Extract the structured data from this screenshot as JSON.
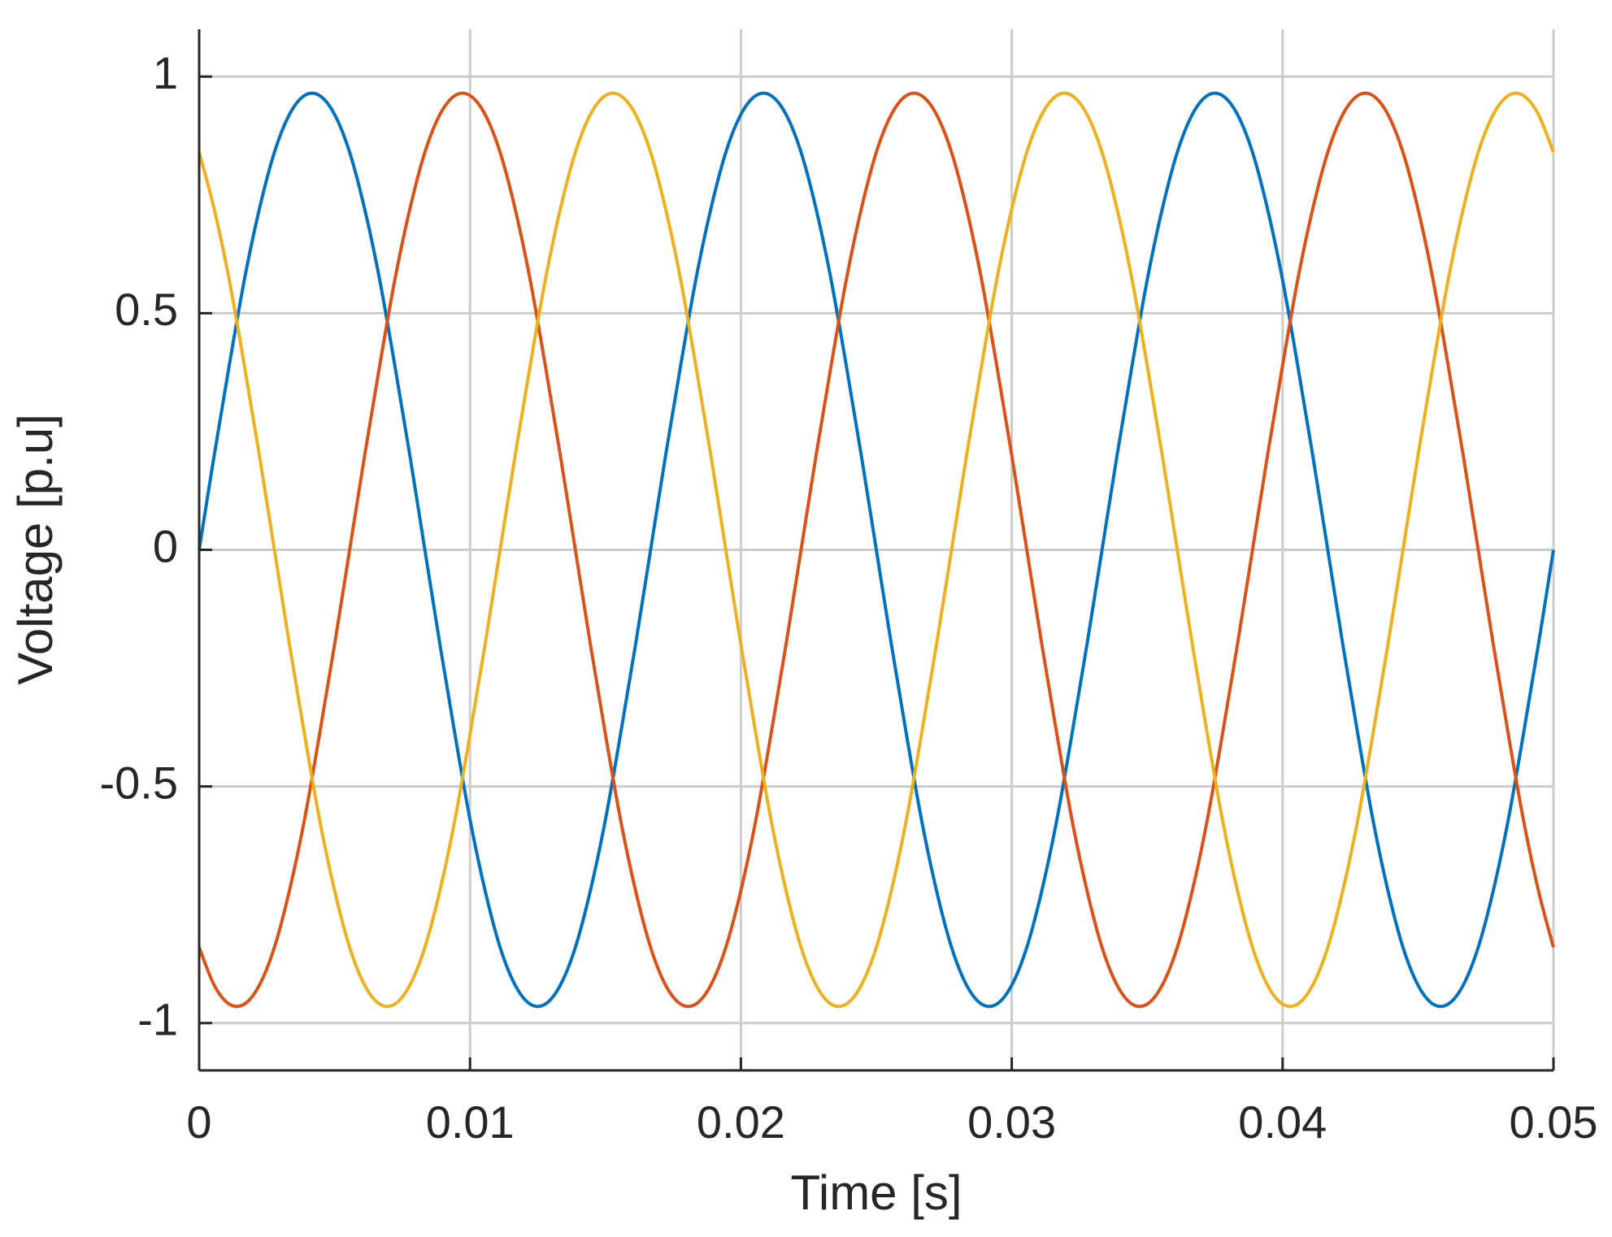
{
  "chart_data": {
    "type": "line",
    "xlabel": "Time [s]",
    "ylabel": "Voltage [p.u]",
    "xlim": [
      0,
      0.05
    ],
    "ylim": [
      -1.1,
      1.1
    ],
    "xticks": [
      0,
      0.01,
      0.02,
      0.03,
      0.04,
      0.05
    ],
    "yticks": [
      -1,
      -0.5,
      0,
      0.5,
      1
    ],
    "grid": true,
    "x": [
      0,
      0.000556,
      0.001111,
      0.001667,
      0.002222,
      0.002778,
      0.003333,
      0.003889,
      0.004444,
      0.005,
      0.005556,
      0.006111,
      0.006667,
      0.007222,
      0.007778,
      0.008333,
      0.008889,
      0.009444,
      0.01,
      0.010556,
      0.011111,
      0.011667,
      0.012222,
      0.012778,
      0.013333,
      0.013889,
      0.014444,
      0.015,
      0.015556,
      0.016111,
      0.016667,
      0.017222,
      0.017778,
      0.018333,
      0.018889,
      0.019444,
      0.02,
      0.020556,
      0.021111,
      0.021667,
      0.022222,
      0.022778,
      0.023333,
      0.023889,
      0.024444,
      0.025,
      0.025556,
      0.026111,
      0.026667,
      0.027222,
      0.027778,
      0.028333,
      0.028889,
      0.029444,
      0.03,
      0.030556,
      0.031111,
      0.031667,
      0.032222,
      0.032778,
      0.033333,
      0.033889,
      0.034444,
      0.035,
      0.035556,
      0.036111,
      0.036667,
      0.037222,
      0.037778,
      0.038333,
      0.038889,
      0.039444,
      0.04,
      0.040556,
      0.041111,
      0.041667,
      0.042222,
      0.042778,
      0.043333,
      0.043889,
      0.044444,
      0.045,
      0.045556,
      0.046111,
      0.046667,
      0.047222,
      0.047778,
      0.048333,
      0.048889,
      0.049444,
      0.05
    ],
    "series": [
      {
        "color": "#0072BD",
        "values": [
          0,
          0.2,
          0.39,
          0.57,
          0.72,
          0.84,
          0.92,
          0.96,
          0.96,
          0.92,
          0.84,
          0.72,
          0.57,
          0.39,
          0.2,
          0,
          -0.2,
          -0.39,
          -0.57,
          -0.72,
          -0.84,
          -0.92,
          -0.96,
          -0.96,
          -0.92,
          -0.84,
          -0.72,
          -0.57,
          -0.39,
          -0.2,
          0,
          0.2,
          0.39,
          0.57,
          0.72,
          0.84,
          0.92,
          0.96,
          0.96,
          0.92,
          0.84,
          0.72,
          0.57,
          0.39,
          0.2,
          0,
          -0.2,
          -0.39,
          -0.57,
          -0.72,
          -0.84,
          -0.92,
          -0.96,
          -0.96,
          -0.92,
          -0.84,
          -0.72,
          -0.57,
          -0.39,
          -0.2,
          0,
          0.2,
          0.39,
          0.57,
          0.72,
          0.84,
          0.92,
          0.96,
          0.96,
          0.92,
          0.84,
          0.72,
          0.57,
          0.39,
          0.2,
          0,
          -0.2,
          -0.39,
          -0.57,
          -0.72,
          -0.84,
          -0.92,
          -0.96,
          -0.96,
          -0.92,
          -0.84,
          -0.72,
          -0.57,
          -0.39,
          -0.2,
          0
        ]
      },
      {
        "color": "#D95319",
        "values": [
          -0.84,
          -0.92,
          -0.96,
          -0.96,
          -0.92,
          -0.84,
          -0.72,
          -0.57,
          -0.39,
          -0.2,
          0,
          0.2,
          0.39,
          0.57,
          0.72,
          0.84,
          0.92,
          0.96,
          0.96,
          0.92,
          0.84,
          0.72,
          0.57,
          0.39,
          0.2,
          0,
          -0.2,
          -0.39,
          -0.57,
          -0.72,
          -0.84,
          -0.92,
          -0.96,
          -0.96,
          -0.92,
          -0.84,
          -0.72,
          -0.57,
          -0.39,
          -0.2,
          0,
          0.2,
          0.39,
          0.57,
          0.72,
          0.84,
          0.92,
          0.96,
          0.96,
          0.92,
          0.84,
          0.72,
          0.57,
          0.39,
          0.2,
          0,
          -0.2,
          -0.39,
          -0.57,
          -0.72,
          -0.84,
          -0.92,
          -0.96,
          -0.96,
          -0.92,
          -0.84,
          -0.72,
          -0.57,
          -0.39,
          -0.2,
          0,
          0.2,
          0.39,
          0.57,
          0.72,
          0.84,
          0.92,
          0.96,
          0.96,
          0.92,
          0.84,
          0.72,
          0.57,
          0.39,
          0.2,
          0,
          -0.2,
          -0.39,
          -0.57,
          -0.72,
          -0.84
        ]
      },
      {
        "color": "#EDB120",
        "values": [
          0.84,
          0.72,
          0.57,
          0.39,
          0.2,
          0,
          -0.2,
          -0.39,
          -0.57,
          -0.72,
          -0.84,
          -0.92,
          -0.96,
          -0.96,
          -0.92,
          -0.84,
          -0.72,
          -0.57,
          -0.39,
          -0.2,
          0,
          0.2,
          0.39,
          0.57,
          0.72,
          0.84,
          0.92,
          0.96,
          0.96,
          0.92,
          0.84,
          0.72,
          0.57,
          0.39,
          0.2,
          0,
          -0.2,
          -0.39,
          -0.57,
          -0.72,
          -0.84,
          -0.92,
          -0.96,
          -0.96,
          -0.92,
          -0.84,
          -0.72,
          -0.57,
          -0.39,
          -0.2,
          0,
          0.2,
          0.39,
          0.57,
          0.72,
          0.84,
          0.92,
          0.96,
          0.96,
          0.92,
          0.84,
          0.72,
          0.57,
          0.39,
          0.2,
          0,
          -0.2,
          -0.39,
          -0.57,
          -0.72,
          -0.84,
          -0.92,
          -0.96,
          -0.96,
          -0.92,
          -0.84,
          -0.72,
          -0.57,
          -0.39,
          -0.2,
          0,
          0.2,
          0.39,
          0.57,
          0.72,
          0.84,
          0.92,
          0.96,
          0.96,
          0.92,
          0.84
        ]
      }
    ]
  }
}
